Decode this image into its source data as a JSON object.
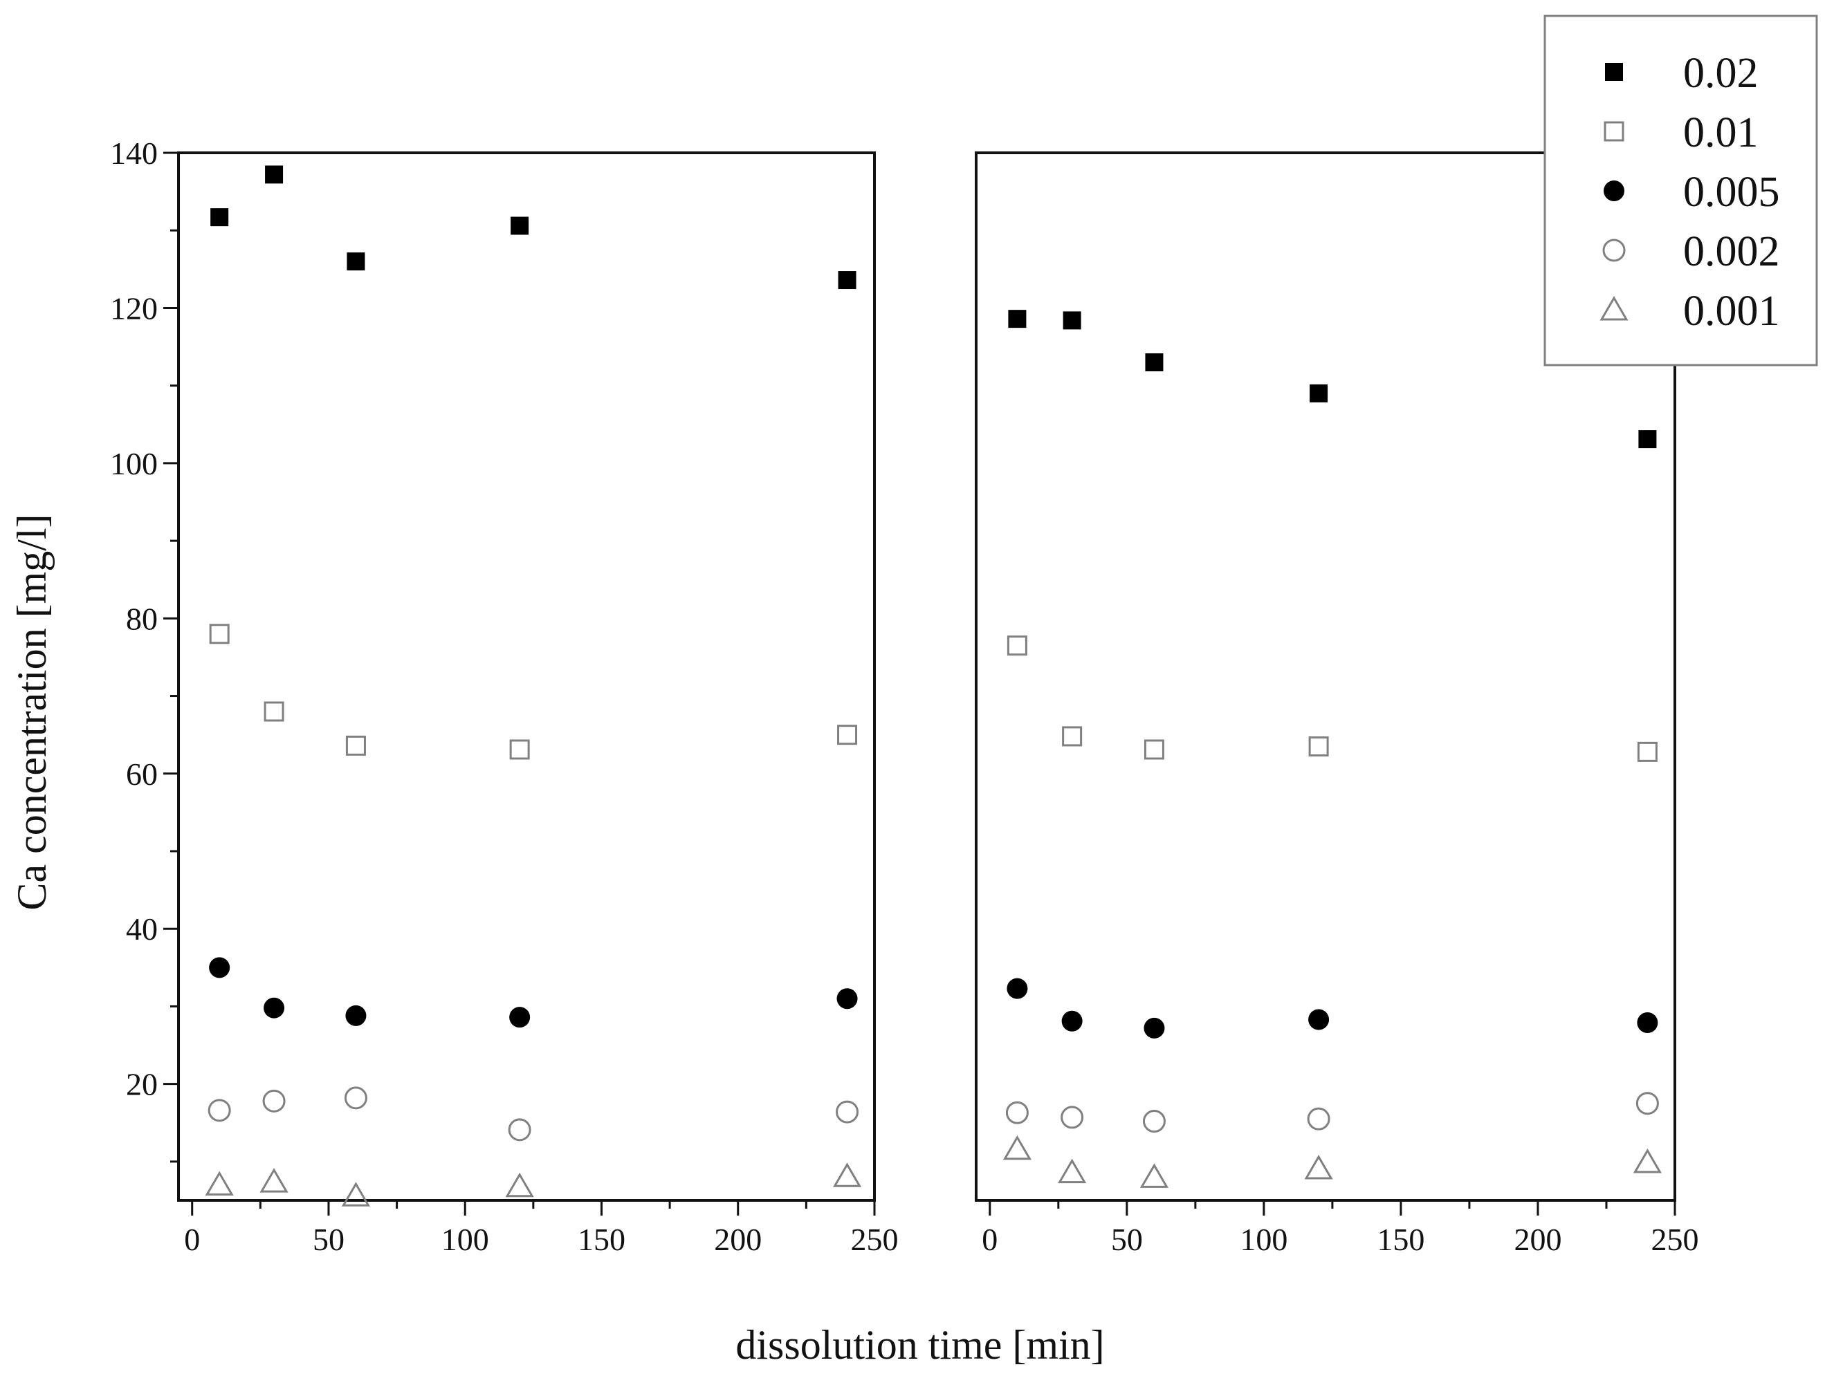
{
  "chart_data": {
    "type": "scatter",
    "ylabel": "Ca concentration [mg/l]",
    "xlabel": "dissolution time [min]",
    "xlim": [
      -5,
      250
    ],
    "ylim": [
      5,
      140
    ],
    "x_ticks": [
      "0",
      "50",
      "100",
      "150",
      "200",
      "250"
    ],
    "y_ticks": [
      "20",
      "40",
      "60",
      "80",
      "100",
      "120",
      "140"
    ],
    "legend": {
      "position": "top-right",
      "entries": [
        {
          "label": "0.02",
          "marker": "filled-square"
        },
        {
          "label": "0.01",
          "marker": "open-square"
        },
        {
          "label": "0.005",
          "marker": "filled-circle"
        },
        {
          "label": "0.002",
          "marker": "open-circle"
        },
        {
          "label": "0.001",
          "marker": "open-triangle"
        }
      ]
    },
    "panels": [
      {
        "name": "left",
        "x": [
          10,
          30,
          60,
          120,
          240
        ],
        "series": [
          {
            "name": "0.02",
            "marker": "filled-square",
            "values": [
              131.7,
              137.2,
              126.0,
              130.6,
              123.6
            ]
          },
          {
            "name": "0.01",
            "marker": "open-square",
            "values": [
              78.0,
              68.0,
              63.6,
              63.1,
              65.0
            ]
          },
          {
            "name": "0.005",
            "marker": "filled-circle",
            "values": [
              35.0,
              29.8,
              28.8,
              28.6,
              31.0
            ]
          },
          {
            "name": "0.002",
            "marker": "open-circle",
            "values": [
              16.6,
              17.8,
              18.2,
              14.1,
              16.4
            ]
          },
          {
            "name": "0.001",
            "marker": "open-triangle",
            "values": [
              7.0,
              7.4,
              5.6,
              6.8,
              8.1
            ]
          }
        ]
      },
      {
        "name": "right",
        "x": [
          10,
          30,
          60,
          120,
          240
        ],
        "series": [
          {
            "name": "0.02",
            "marker": "filled-square",
            "values": [
              118.6,
              118.4,
              113.0,
              109.0,
              103.1
            ]
          },
          {
            "name": "0.01",
            "marker": "open-square",
            "values": [
              76.5,
              64.8,
              63.1,
              63.5,
              62.8
            ]
          },
          {
            "name": "0.005",
            "marker": "filled-circle",
            "values": [
              32.3,
              28.1,
              27.2,
              28.3,
              27.9
            ]
          },
          {
            "name": "0.002",
            "marker": "open-circle",
            "values": [
              16.3,
              15.7,
              15.2,
              15.5,
              17.5
            ]
          },
          {
            "name": "0.001",
            "marker": "open-triangle",
            "values": [
              11.6,
              8.6,
              8.0,
              9.1,
              9.9
            ]
          }
        ]
      }
    ]
  },
  "colors": {
    "filled_marker": "#000000",
    "open_marker": "#808080",
    "axis": "#111111",
    "legend_border": "#808080"
  }
}
